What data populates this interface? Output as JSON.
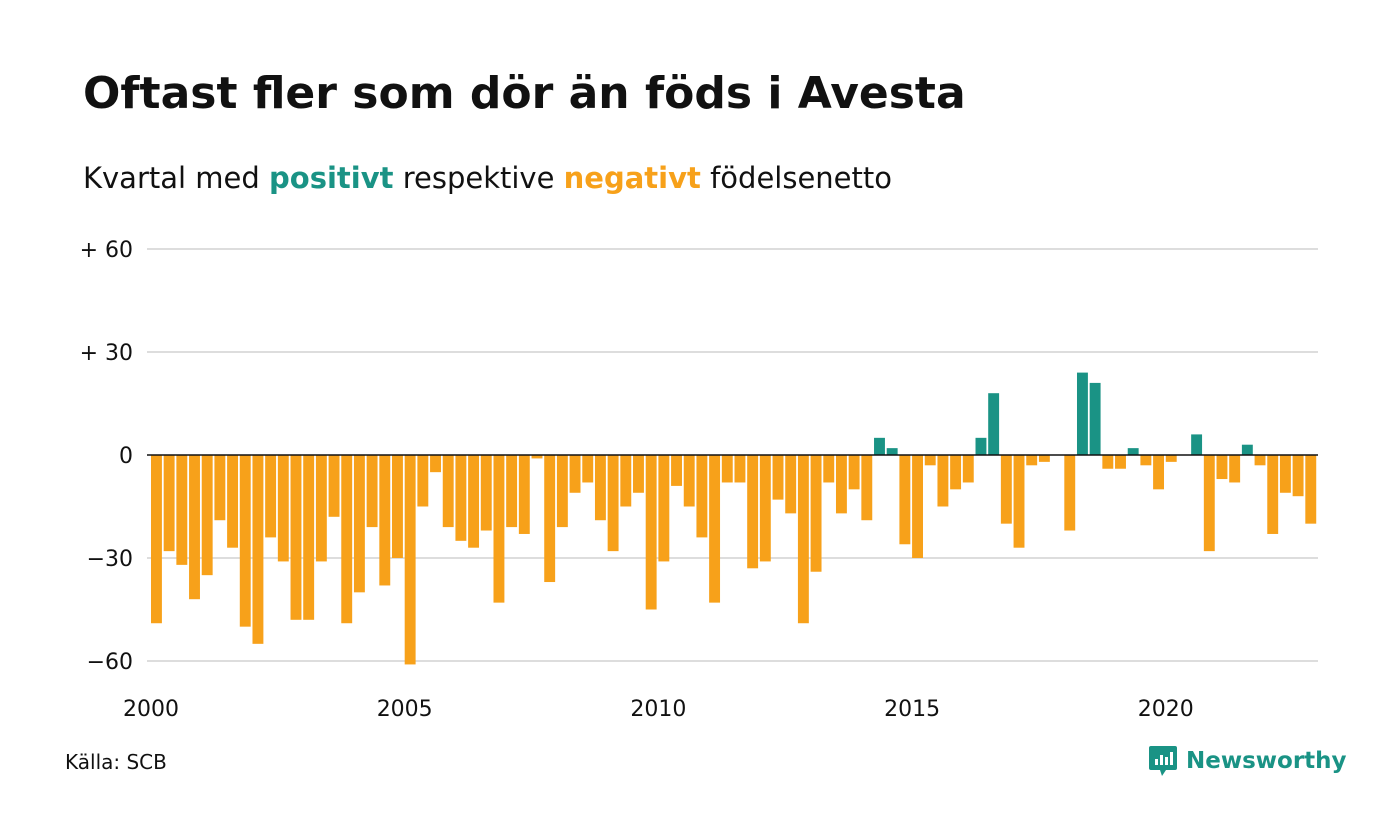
{
  "title": "Oftast fler som dör än föds i Avesta",
  "subtitle": {
    "before": "Kvartal med",
    "positive": "positivt",
    "middle": "respektive",
    "negative": "negativt",
    "after": "födelsenetto"
  },
  "source": "Källa: SCB",
  "brand": {
    "name": "Newsworthy",
    "icon": "newsworthy-logo-icon"
  },
  "colors": {
    "positive": "#1a9385",
    "negative": "#f7a11a",
    "grid": "#dddddd",
    "zero_line": "#111111"
  },
  "chart_data": {
    "type": "bar",
    "title": "Oftast fler som dör än föds i Avesta",
    "subtitle": "Kvartal med positivt respektive negativt födelsenetto",
    "xlabel": "",
    "ylabel": "",
    "ylim": [
      -65,
      60
    ],
    "y_ticks": [
      60,
      30,
      0,
      -30,
      -60
    ],
    "y_tick_labels": [
      "+ 60",
      "+ 30",
      "0",
      "−30",
      "−60"
    ],
    "x_ticks": [
      2000,
      2005,
      2010,
      2015,
      2020
    ],
    "x_tick_labels": [
      "2000",
      "2005",
      "2010",
      "2015",
      "2020"
    ],
    "x_start": 2000,
    "x_end": 2023,
    "grid": true,
    "legend": "none",
    "categories": [
      "2000 Q1",
      "2000 Q2",
      "2000 Q3",
      "2000 Q4",
      "2001 Q1",
      "2001 Q2",
      "2001 Q3",
      "2001 Q4",
      "2002 Q1",
      "2002 Q2",
      "2002 Q3",
      "2002 Q4",
      "2003 Q1",
      "2003 Q2",
      "2003 Q3",
      "2003 Q4",
      "2004 Q1",
      "2004 Q2",
      "2004 Q3",
      "2004 Q4",
      "2005 Q1",
      "2005 Q2",
      "2005 Q3",
      "2005 Q4",
      "2006 Q1",
      "2006 Q2",
      "2006 Q3",
      "2006 Q4",
      "2007 Q1",
      "2007 Q2",
      "2007 Q3",
      "2007 Q4",
      "2008 Q1",
      "2008 Q2",
      "2008 Q3",
      "2008 Q4",
      "2009 Q1",
      "2009 Q2",
      "2009 Q3",
      "2009 Q4",
      "2010 Q1",
      "2010 Q2",
      "2010 Q3",
      "2010 Q4",
      "2011 Q1",
      "2011 Q2",
      "2011 Q3",
      "2011 Q4",
      "2012 Q1",
      "2012 Q2",
      "2012 Q3",
      "2012 Q4",
      "2013 Q1",
      "2013 Q2",
      "2013 Q3",
      "2013 Q4",
      "2014 Q1",
      "2014 Q2",
      "2014 Q3",
      "2014 Q4",
      "2015 Q1",
      "2015 Q2",
      "2015 Q3",
      "2015 Q4",
      "2016 Q1",
      "2016 Q2",
      "2016 Q3",
      "2016 Q4",
      "2017 Q1",
      "2017 Q2",
      "2017 Q3",
      "2017 Q4",
      "2018 Q1",
      "2018 Q2",
      "2018 Q3",
      "2018 Q4",
      "2019 Q1",
      "2019 Q2",
      "2019 Q3",
      "2019 Q4",
      "2020 Q1",
      "2020 Q2",
      "2020 Q3",
      "2020 Q4",
      "2021 Q1",
      "2021 Q2",
      "2021 Q3",
      "2021 Q4",
      "2022 Q1",
      "2022 Q2",
      "2022 Q3",
      "2022 Q4"
    ],
    "values": [
      -49,
      -28,
      -32,
      -42,
      -35,
      -19,
      -27,
      -50,
      -55,
      -24,
      -31,
      -48,
      -48,
      -31,
      -18,
      -49,
      -40,
      -21,
      -38,
      -30,
      -61,
      -15,
      -5,
      -21,
      -25,
      -27,
      -22,
      -43,
      -21,
      -23,
      -1,
      -37,
      -21,
      -11,
      -8,
      -19,
      -28,
      -15,
      -11,
      -45,
      -31,
      -9,
      -15,
      -24,
      -43,
      -8,
      -8,
      -33,
      -31,
      -13,
      -17,
      -49,
      -34,
      -8,
      -17,
      -10,
      -19,
      5,
      2,
      -26,
      -30,
      -3,
      -15,
      -10,
      -8,
      5,
      18,
      -20,
      -27,
      -3,
      -2,
      0,
      -22,
      24,
      21,
      -4,
      -4,
      2,
      -3,
      -10,
      -2,
      0,
      6,
      -28,
      -7,
      -8,
      3,
      -3,
      -23,
      -11,
      -12,
      -20
    ]
  }
}
